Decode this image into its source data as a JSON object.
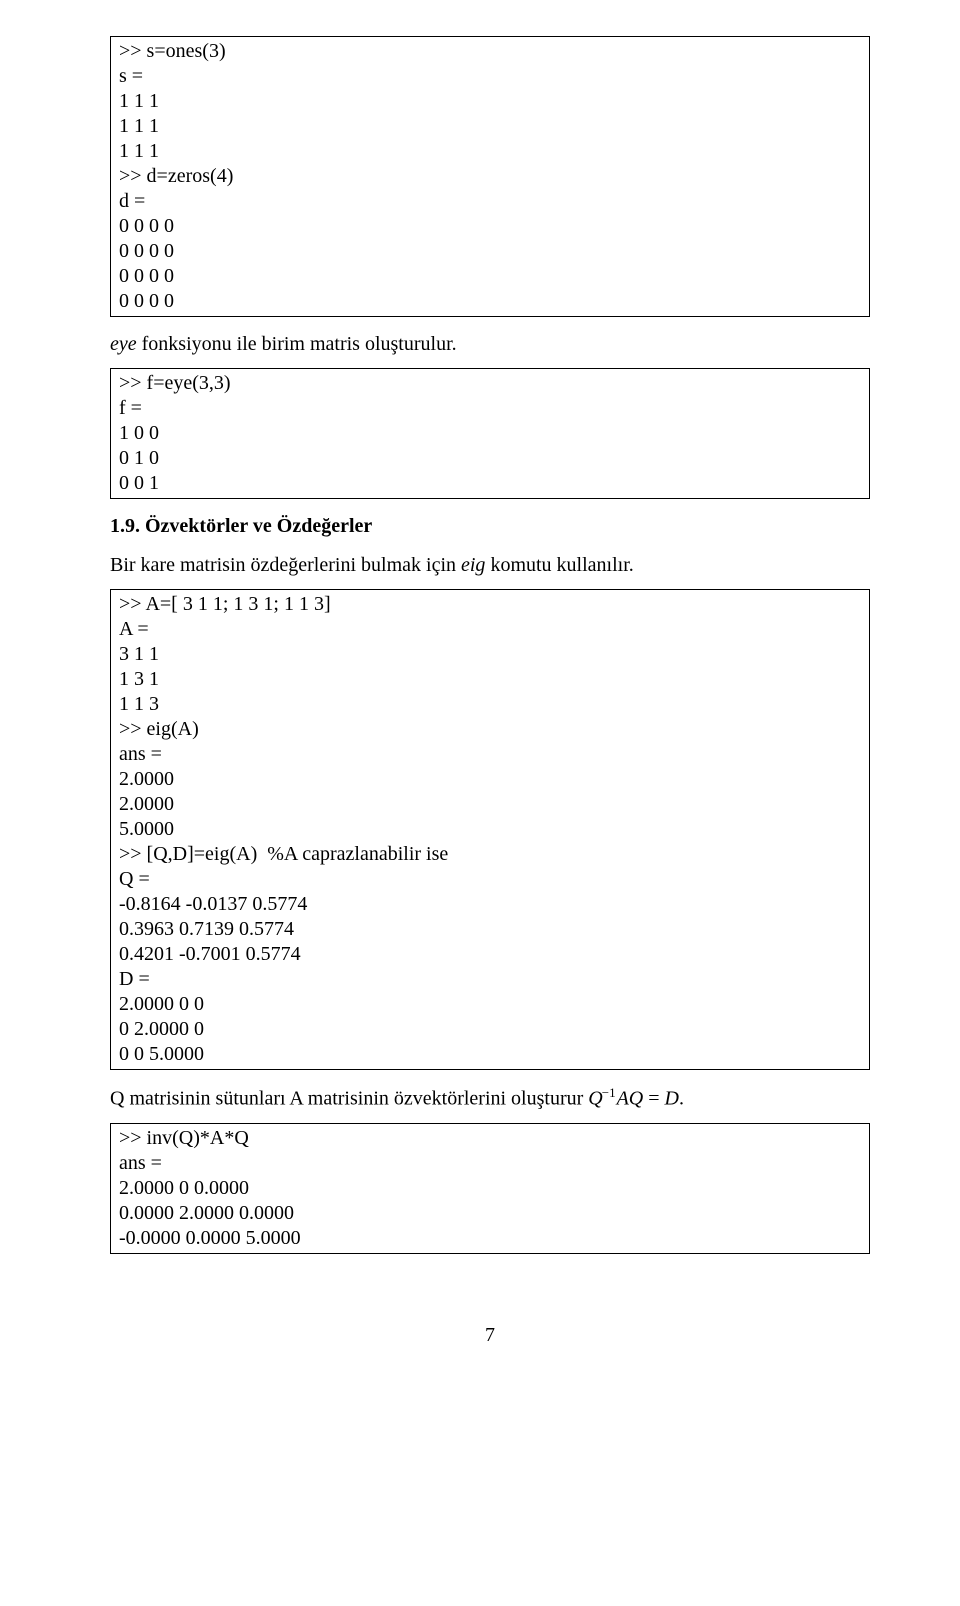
{
  "box1": {
    "text": ">> s=ones(3)\ns =\n1 1 1\n1 1 1\n1 1 1\n>> d=zeros(4)\nd =\n0 0 0 0\n0 0 0 0\n0 0 0 0\n0 0 0 0"
  },
  "para1": {
    "pre_italic": "",
    "italic": "eye",
    "post_italic": " fonksiyonu ile birim matris oluşturulur."
  },
  "box2": {
    "text": ">> f=eye(3,3)\nf =\n1 0 0\n0 1 0\n0 0 1"
  },
  "heading": {
    "text": "1.9. Özvektörler ve Özdeğerler"
  },
  "para2": {
    "pre": "Bir kare matrisin özdeğerlerini bulmak için ",
    "italic": "eig",
    "post": " komutu kullanılır."
  },
  "box3": {
    "text": ">> A=[ 3 1 1; 1 3 1; 1 1 3]\nA =\n3 1 1\n1 3 1\n1 1 3\n>> eig(A)\nans =\n2.0000\n2.0000\n5.0000\n>> [Q,D]=eig(A)  %A caprazlanabilir ise\nQ =\n-0.8164 -0.0137 0.5774\n0.3963 0.7139 0.5774\n0.4201 -0.7001 0.5774\nD =\n2.0000 0 0\n0 2.0000 0\n0 0 5.0000"
  },
  "para3": {
    "pre": "Q matrisinin sütunları A matrisinin özvektörlerini oluşturur",
    "formula_q": "Q",
    "formula_sup": "−1",
    "formula_aq": "AQ",
    "formula_eq": " = ",
    "formula_d": "D",
    "post": "."
  },
  "box4": {
    "text": ">> inv(Q)*A*Q\nans =\n2.0000 0 0.0000\n0.0000 2.0000 0.0000\n-0.0000 0.0000 5.0000"
  },
  "page_number": "7"
}
